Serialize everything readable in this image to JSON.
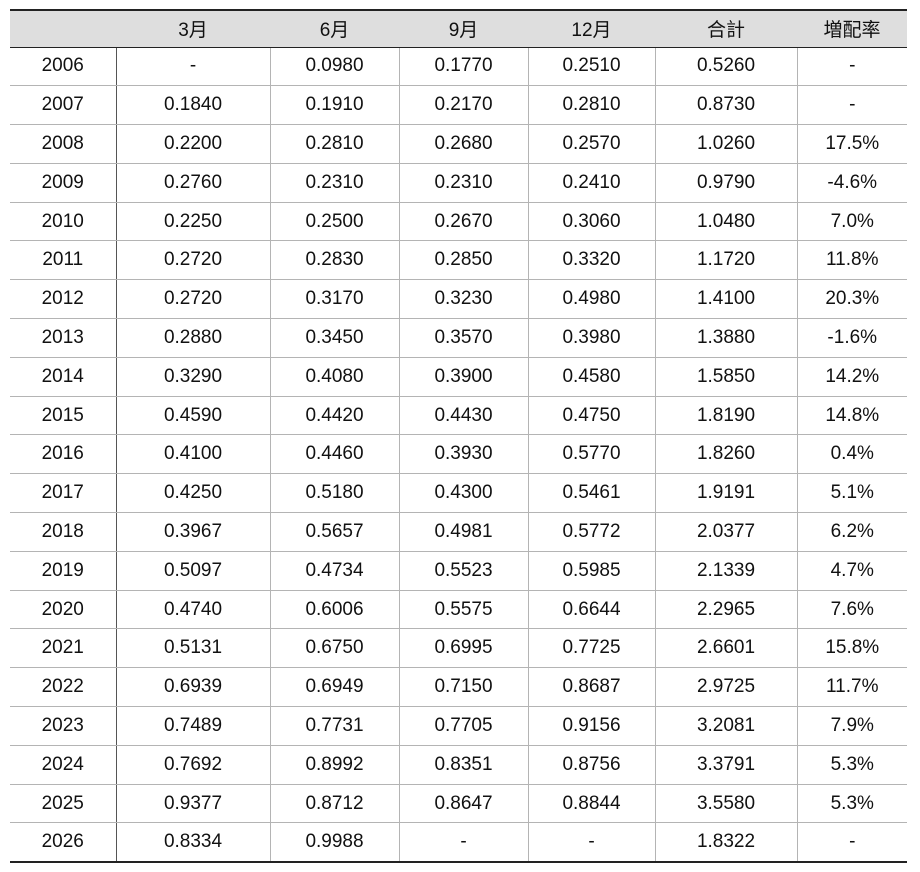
{
  "table": {
    "headers": [
      "",
      "3月",
      "6月",
      "9月",
      "12月",
      "合計",
      "増配率"
    ],
    "rows": [
      [
        "2006",
        "-",
        "0.0980",
        "0.1770",
        "0.2510",
        "0.5260",
        "-"
      ],
      [
        "2007",
        "0.1840",
        "0.1910",
        "0.2170",
        "0.2810",
        "0.8730",
        "-"
      ],
      [
        "2008",
        "0.2200",
        "0.2810",
        "0.2680",
        "0.2570",
        "1.0260",
        "17.5%"
      ],
      [
        "2009",
        "0.2760",
        "0.2310",
        "0.2310",
        "0.2410",
        "0.9790",
        "-4.6%"
      ],
      [
        "2010",
        "0.2250",
        "0.2500",
        "0.2670",
        "0.3060",
        "1.0480",
        "7.0%"
      ],
      [
        "2011",
        "0.2720",
        "0.2830",
        "0.2850",
        "0.3320",
        "1.1720",
        "11.8%"
      ],
      [
        "2012",
        "0.2720",
        "0.3170",
        "0.3230",
        "0.4980",
        "1.4100",
        "20.3%"
      ],
      [
        "2013",
        "0.2880",
        "0.3450",
        "0.3570",
        "0.3980",
        "1.3880",
        "-1.6%"
      ],
      [
        "2014",
        "0.3290",
        "0.4080",
        "0.3900",
        "0.4580",
        "1.5850",
        "14.2%"
      ],
      [
        "2015",
        "0.4590",
        "0.4420",
        "0.4430",
        "0.4750",
        "1.8190",
        "14.8%"
      ],
      [
        "2016",
        "0.4100",
        "0.4460",
        "0.3930",
        "0.5770",
        "1.8260",
        "0.4%"
      ],
      [
        "2017",
        "0.4250",
        "0.5180",
        "0.4300",
        "0.5461",
        "1.9191",
        "5.1%"
      ],
      [
        "2018",
        "0.3967",
        "0.5657",
        "0.4981",
        "0.5772",
        "2.0377",
        "6.2%"
      ],
      [
        "2019",
        "0.5097",
        "0.4734",
        "0.5523",
        "0.5985",
        "2.1339",
        "4.7%"
      ],
      [
        "2020",
        "0.4740",
        "0.6006",
        "0.5575",
        "0.6644",
        "2.2965",
        "7.6%"
      ],
      [
        "2021",
        "0.5131",
        "0.6750",
        "0.6995",
        "0.7725",
        "2.6601",
        "15.8%"
      ],
      [
        "2022",
        "0.6939",
        "0.6949",
        "0.7150",
        "0.8687",
        "2.9725",
        "11.7%"
      ],
      [
        "2023",
        "0.7489",
        "0.7731",
        "0.7705",
        "0.9156",
        "3.2081",
        "7.9%"
      ],
      [
        "2024",
        "0.7692",
        "0.8992",
        "0.8351",
        "0.8756",
        "3.3791",
        "5.3%"
      ],
      [
        "2025",
        "0.9377",
        "0.8712",
        "0.8647",
        "0.8844",
        "3.5580",
        "5.3%"
      ],
      [
        "2026",
        "0.8334",
        "0.9988",
        "-",
        "-",
        "1.8322",
        "-"
      ]
    ]
  }
}
